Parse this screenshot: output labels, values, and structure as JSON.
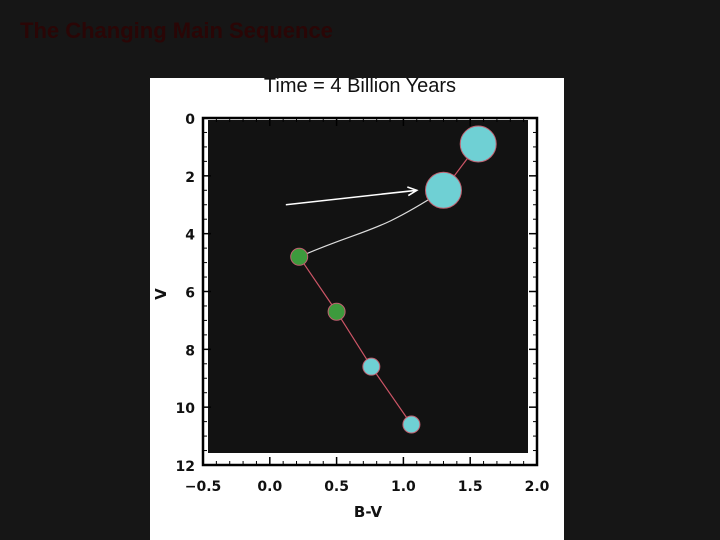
{
  "slide": {
    "title": "The Changing Main Sequence",
    "background": "#161616",
    "title_color": "#2a0606"
  },
  "chart_data": {
    "type": "scatter",
    "title": "Time = 4 Billion Years",
    "xlabel": "B-V",
    "ylabel": "V",
    "xlim": [
      -0.5,
      2.0
    ],
    "ylim": [
      12,
      0
    ],
    "y_inverted": true,
    "xticks": [
      -0.5,
      0.0,
      0.5,
      1.0,
      1.5,
      2.0
    ],
    "xtick_labels": [
      "−0.5",
      "0.0",
      "0.5",
      "1.0",
      "1.5",
      "2.0"
    ],
    "yticks": [
      0,
      2,
      4,
      6,
      8,
      10,
      12
    ],
    "ytick_labels": [
      "0",
      "2",
      "4",
      "6",
      "8",
      "10",
      "12"
    ],
    "plot_background": "#121212",
    "grid": false,
    "legend": "none",
    "stars": [
      {
        "bv": 1.56,
        "v": 0.9,
        "size": "large",
        "color": "#6fd0d4"
      },
      {
        "bv": 1.3,
        "v": 2.5,
        "size": "large",
        "color": "#6fd0d4"
      },
      {
        "bv": 0.22,
        "v": 4.8,
        "size": "small",
        "color": "#3d9a3d"
      },
      {
        "bv": 0.5,
        "v": 6.7,
        "size": "small",
        "color": "#3d9a3d"
      },
      {
        "bv": 0.76,
        "v": 8.6,
        "size": "small",
        "color": "#6fd0d4"
      },
      {
        "bv": 1.06,
        "v": 10.6,
        "size": "small",
        "color": "#6fd0d4"
      }
    ],
    "track": {
      "description": "evolutionary track from the turnoff star to the giants",
      "color": "#dddddd"
    },
    "arrow": {
      "from": {
        "bv": 0.12,
        "v": 3.0
      },
      "to": {
        "bv": 1.1,
        "v": 2.5
      },
      "color": "#ffffff"
    }
  }
}
